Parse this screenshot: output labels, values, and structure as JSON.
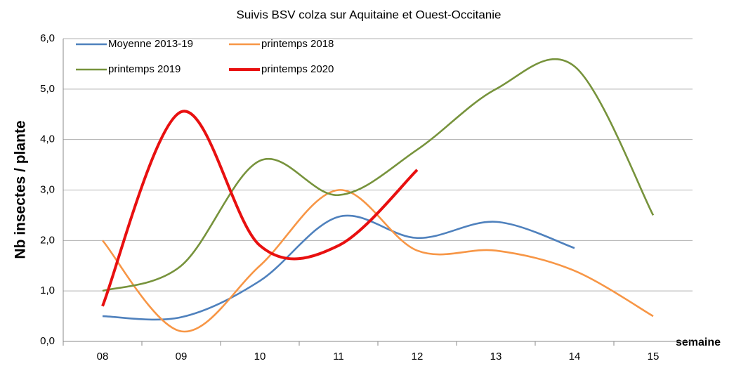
{
  "chart_data": {
    "type": "line",
    "subtitle": "Suivis BSV colza sur Aquitaine et Ouest-Occitanie",
    "y_label": "Nb insectes / plante",
    "x_label": "semaine",
    "categories": [
      "08",
      "09",
      "10",
      "11",
      "12",
      "13",
      "14",
      "15"
    ],
    "series": [
      {
        "name": "Moyenne 2013-19",
        "color": "#4f81bd",
        "values": [
          0.5,
          0.48,
          1.2,
          2.47,
          2.05,
          2.37,
          1.85,
          null
        ]
      },
      {
        "name": "printemps 2018",
        "color": "#f79646",
        "values": [
          2.0,
          0.2,
          1.5,
          3.0,
          1.8,
          1.8,
          1.4,
          0.5
        ]
      },
      {
        "name": "printemps 2019",
        "color": "#77933c",
        "values": [
          1.0,
          1.5,
          3.58,
          2.9,
          3.8,
          5.0,
          5.45,
          2.5
        ]
      },
      {
        "name": "printemps 2020",
        "color": "#e81010",
        "values": [
          0.7,
          4.55,
          1.9,
          1.9,
          3.4,
          null,
          null,
          null
        ]
      }
    ],
    "ylim": [
      0,
      6
    ],
    "yticks": [
      {
        "value": 0,
        "label": "0,0"
      },
      {
        "value": 1,
        "label": "1,0"
      },
      {
        "value": 2,
        "label": "2,0"
      },
      {
        "value": 3,
        "label": "3,0"
      },
      {
        "value": 4,
        "label": "4,0"
      },
      {
        "value": 5,
        "label": "5,0"
      },
      {
        "value": 6,
        "label": "6,0"
      }
    ],
    "grid": true
  }
}
